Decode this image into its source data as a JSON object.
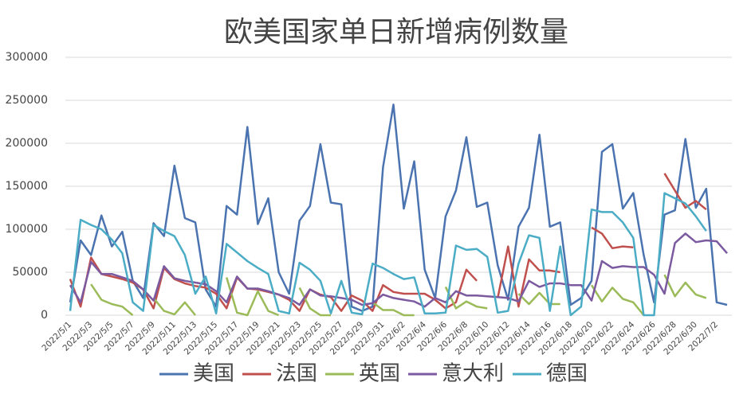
{
  "chart_data": {
    "type": "line",
    "title": "欧美国家单日新增病例数量",
    "categories": [
      "2022/5/1",
      null,
      "2022/5/3",
      null,
      "2022/5/5",
      null,
      "2022/5/7",
      null,
      "2022/5/9",
      null,
      "2022/5/11",
      null,
      "2022/5/13",
      null,
      "2022/5/15",
      null,
      "2022/5/17",
      null,
      "2022/5/19",
      null,
      "2022/5/21",
      null,
      "2022/5/23",
      null,
      "2022/5/25",
      null,
      "2022/5/27",
      null,
      "2022/5/29",
      null,
      "2022/5/31",
      null,
      "2022/6/2",
      null,
      "2022/6/4",
      null,
      "2022/6/6",
      null,
      "2022/6/8",
      null,
      "2022/6/10",
      null,
      "2022/6/12",
      null,
      "2022/6/14",
      null,
      "2022/6/16",
      null,
      "2022/6/18",
      null,
      "2022/6/20",
      null,
      "2022/6/22",
      null,
      "2022/6/24",
      null,
      "2022/6/26",
      null,
      "2022/6/28",
      null,
      "2022/6/30",
      null,
      "2022/7/2",
      null
    ],
    "series": [
      {
        "name": "美国",
        "color": "#4a73b0",
        "values": [
          15000,
          87000,
          70000,
          116000,
          80000,
          97000,
          40000,
          20000,
          107000,
          92000,
          174000,
          113000,
          108000,
          30000,
          10000,
          127000,
          117000,
          219000,
          106000,
          136000,
          50000,
          25000,
          110000,
          127000,
          199000,
          131000,
          129000,
          10000,
          5000,
          10000,
          172000,
          245000,
          124000,
          179000,
          53000,
          20000,
          115000,
          145000,
          207000,
          126000,
          131000,
          58000,
          18000,
          103000,
          125000,
          210000,
          103000,
          108000,
          12000,
          20000,
          40000,
          190000,
          199000,
          124000,
          142000,
          70000,
          15000,
          117000,
          122000,
          205000,
          125000,
          147000,
          15000,
          12000
        ]
      },
      {
        "name": "法国",
        "color": "#c0504d",
        "values": [
          42000,
          10000,
          67000,
          48000,
          45000,
          42000,
          38000,
          30000,
          8000,
          55000,
          42000,
          37000,
          34000,
          32000,
          25000,
          8000,
          44000,
          31000,
          30000,
          27000,
          24000,
          18000,
          5000,
          30000,
          24000,
          21000,
          5000,
          23000,
          17000,
          5000,
          35000,
          27000,
          25000,
          25000,
          25000,
          18000,
          8000,
          15000,
          53000,
          40000,
          null,
          20000,
          80000,
          10000,
          65000,
          52000,
          52000,
          50000,
          null,
          null,
          102000,
          95000,
          78000,
          80000,
          79000,
          null,
          null,
          165000,
          145000,
          125000,
          133000,
          123000,
          null,
          null
        ]
      },
      {
        "name": "英国",
        "color": "#9bbb59",
        "values": [
          null,
          null,
          36000,
          18000,
          13000,
          10000,
          0,
          null,
          20000,
          5000,
          1000,
          15000,
          0,
          null,
          null,
          44000,
          3000,
          0,
          28000,
          5000,
          0,
          null,
          32000,
          8000,
          0,
          0,
          null,
          null,
          null,
          15000,
          6000,
          6000,
          0,
          0,
          null,
          null,
          33000,
          8000,
          16000,
          10000,
          8000,
          null,
          null,
          25000,
          13000,
          26000,
          13000,
          13000,
          null,
          null,
          35000,
          16000,
          32000,
          19000,
          15000,
          0,
          null,
          47000,
          22000,
          38000,
          24000,
          20000,
          null,
          null
        ]
      },
      {
        "name": "意大利",
        "color": "#7b5aa0",
        "values": [
          35000,
          15000,
          62000,
          48000,
          48000,
          44000,
          40000,
          30000,
          17000,
          57000,
          43000,
          40000,
          38000,
          36000,
          28000,
          15000,
          45000,
          31000,
          31000,
          28000,
          24000,
          20000,
          12000,
          30000,
          23000,
          22000,
          20000,
          18000,
          12000,
          14000,
          24000,
          20000,
          18000,
          16000,
          10000,
          20000,
          15000,
          28000,
          23000,
          23000,
          22000,
          21000,
          20000,
          16000,
          40000,
          33000,
          37000,
          37000,
          35000,
          35000,
          17000,
          63000,
          55000,
          57000,
          56000,
          56000,
          47000,
          25000,
          84000,
          95000,
          85000,
          87000,
          86000,
          72000
        ]
      },
      {
        "name": "德国",
        "color": "#4bacc6",
        "values": [
          5000,
          111000,
          105000,
          100000,
          88000,
          72000,
          15000,
          5000,
          105000,
          98000,
          92000,
          70000,
          25000,
          45000,
          2000,
          83000,
          73000,
          63000,
          55000,
          48000,
          5000,
          2000,
          61000,
          53000,
          40000,
          2000,
          40000,
          3000,
          1000,
          60000,
          55000,
          48000,
          42000,
          44000,
          2000,
          2000,
          3000,
          81000,
          76000,
          77000,
          68000,
          3000,
          5000,
          60000,
          93000,
          90000,
          5000,
          80000,
          0,
          10000,
          123000,
          120000,
          120000,
          108000,
          90000,
          0,
          0,
          142000,
          136000,
          130000,
          115000,
          98000,
          null,
          null
        ]
      }
    ],
    "ylim": [
      0,
      300000
    ],
    "yticks": [
      0,
      50000,
      100000,
      150000,
      200000,
      250000,
      300000
    ],
    "grid": true,
    "legend": "bottom"
  }
}
